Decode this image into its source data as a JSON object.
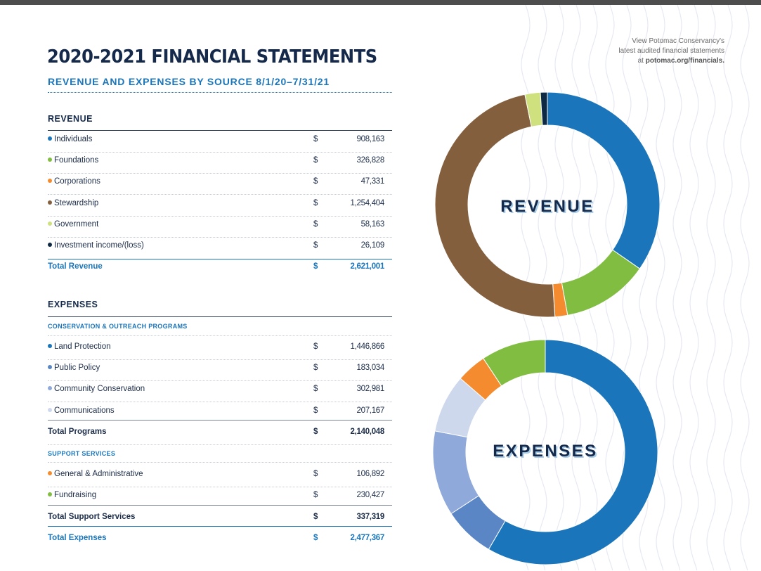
{
  "header": {
    "title": "2020-2021 FINANCIAL STATEMENTS",
    "subtitle": "REVENUE AND EXPENSES BY SOURCE 8/1/20–7/31/21",
    "note_line1": "View Potomac Conservancy's",
    "note_line2": "latest audited financial statements",
    "note_line3_prefix": "at ",
    "note_link": "potomac.org/financials."
  },
  "colors": {
    "navy": "#15294a",
    "blue": "#1a75bb",
    "green": "#80bd41",
    "orange": "#f48c2f",
    "brown": "#835f3e",
    "light_green": "#cfe07f",
    "dark_navy": "#0e2944",
    "mid_blue": "#5a86c5",
    "periwinkle": "#8fa9da",
    "pale_blue": "#cdd8ec"
  },
  "revenue": {
    "heading": "REVENUE",
    "currency": "$",
    "items": [
      {
        "label": "Individuals",
        "value": "908,163",
        "color": "#1a75bb"
      },
      {
        "label": "Foundations",
        "value": "326,828",
        "color": "#80bd41"
      },
      {
        "label": "Corporations",
        "value": "47,331",
        "color": "#f48c2f"
      },
      {
        "label": "Stewardship",
        "value": "1,254,404",
        "color": "#835f3e"
      },
      {
        "label": "Government",
        "value": "58,163",
        "color": "#cfe07f"
      },
      {
        "label": "Investment income/(loss)",
        "value": "26,109",
        "color": "#0e2944"
      }
    ],
    "total_label": "Total Revenue",
    "total_value": "2,621,001"
  },
  "expenses": {
    "heading": "EXPENSES",
    "currency": "$",
    "programs_heading": "CONSERVATION & OUTREACH PROGRAMS",
    "programs": [
      {
        "label": "Land Protection",
        "value": "1,446,866",
        "color": "#1a75bb"
      },
      {
        "label": "Public Policy",
        "value": "183,034",
        "color": "#5a86c5"
      },
      {
        "label": "Community Conservation",
        "value": "302,981",
        "color": "#8fa9da"
      },
      {
        "label": "Communications",
        "value": "207,167",
        "color": "#cdd8ec"
      }
    ],
    "programs_total_label": "Total Programs",
    "programs_total_value": "2,140,048",
    "support_heading": "SUPPORT SERVICES",
    "support": [
      {
        "label": "General & Administrative",
        "value": "106,892",
        "color": "#f48c2f"
      },
      {
        "label": "Fundraising",
        "value": "230,427",
        "color": "#80bd41"
      }
    ],
    "support_total_label": "Total Support Services",
    "support_total_value": "337,319",
    "total_label": "Total Expenses",
    "total_value": "2,477,367"
  },
  "chart_data": [
    {
      "type": "pie",
      "title": "REVENUE",
      "categories": [
        "Individuals",
        "Foundations",
        "Corporations",
        "Stewardship",
        "Government",
        "Investment income/(loss)"
      ],
      "values": [
        908163,
        326828,
        47331,
        1254404,
        58163,
        26109
      ],
      "colors": [
        "#1a75bb",
        "#80bd41",
        "#f48c2f",
        "#835f3e",
        "#cfe07f",
        "#0e2944"
      ]
    },
    {
      "type": "pie",
      "title": "EXPENSES",
      "categories": [
        "Land Protection",
        "Public Policy",
        "Community Conservation",
        "Communications",
        "General & Administrative",
        "Fundraising"
      ],
      "values": [
        1446866,
        183034,
        302981,
        207167,
        106892,
        230427
      ],
      "colors": [
        "#1a75bb",
        "#5a86c5",
        "#8fa9da",
        "#cdd8ec",
        "#f48c2f",
        "#80bd41"
      ]
    }
  ]
}
